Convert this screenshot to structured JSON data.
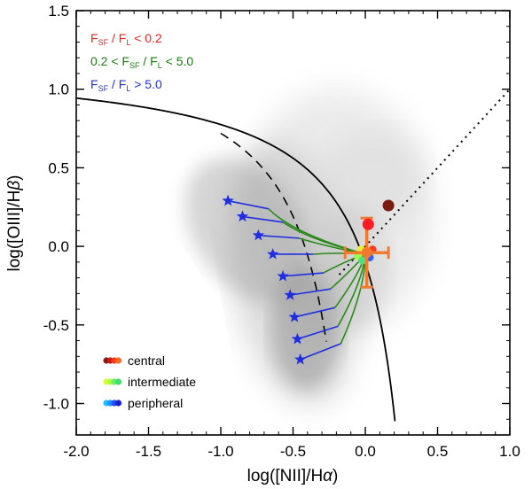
{
  "chart_data": {
    "type": "scatter",
    "title": "",
    "xlabel_main": "log([NII]/H",
    "xlabel_greek": "α",
    "ylabel_main": "log([OIII]/H",
    "ylabel_greek": "β",
    "xlim": [
      -2.0,
      1.0
    ],
    "ylim": [
      -1.2,
      1.5
    ],
    "x_ticks": [
      -2.0,
      -1.5,
      -1.0,
      -0.5,
      0.0,
      0.5,
      1.0
    ],
    "x_tick_labels": [
      "-2.0",
      "-1.5",
      "-1.0",
      "-0.5",
      "0.0",
      "0.5",
      "1.0"
    ],
    "y_ticks": [
      -1.0,
      -0.5,
      0.0,
      0.5,
      1.0,
      1.5
    ],
    "y_tick_labels": [
      "-1.0",
      "-0.5",
      "0.0",
      "0.5",
      "1.0",
      "1.5"
    ],
    "ratio_legend": [
      {
        "prefix": "",
        "sub1": "SF",
        "sub2": "L",
        "suffix": " < 0.2",
        "color": "#e8231c"
      },
      {
        "prefix": "0.2 < ",
        "sub1": "SF",
        "sub2": "L",
        "suffix": " < 5.0",
        "color": "#1a7a12"
      },
      {
        "prefix": "",
        "sub1": "SF",
        "sub2": "L",
        "suffix": " > 5.0",
        "color": "#1f2fe0"
      }
    ],
    "symbol_legend": [
      {
        "label": "central",
        "colors": [
          "#8b1a0f",
          "#c21a10",
          "#ff3a1a",
          "#ff6a20"
        ]
      },
      {
        "label": "intermediate",
        "colors": [
          "#d8ff30",
          "#a8ff40",
          "#70f060",
          "#40e070"
        ]
      },
      {
        "label": "peripheral",
        "colors": [
          "#20c0ff",
          "#2090ff",
          "#2050ff",
          "#1a20d0"
        ]
      }
    ],
    "fixed_point": {
      "x": 0.0,
      "y": -0.05
    },
    "peripheral_stars": [
      {
        "x": -0.95,
        "y": 0.29
      },
      {
        "x": -0.85,
        "y": 0.19
      },
      {
        "x": -0.74,
        "y": 0.07
      },
      {
        "x": -0.64,
        "y": -0.05
      },
      {
        "x": -0.57,
        "y": -0.19
      },
      {
        "x": -0.52,
        "y": -0.31
      },
      {
        "x": -0.49,
        "y": -0.45
      },
      {
        "x": -0.47,
        "y": -0.59
      },
      {
        "x": -0.45,
        "y": -0.72
      }
    ],
    "central_points": [
      {
        "x": 0.16,
        "y": 0.26,
        "color": "#7a1a10"
      },
      {
        "x": 0.02,
        "y": 0.14,
        "color": "#ff1a24"
      }
    ],
    "central_cross": {
      "x": 0.01,
      "y": -0.04,
      "xerr": 0.15,
      "yerr": 0.22,
      "color": "#f07a30"
    },
    "cluster_points": [
      {
        "x": -0.03,
        "y": -0.02,
        "color": "#e8f030"
      },
      {
        "x": -0.05,
        "y": -0.06,
        "color": "#9cff48"
      },
      {
        "x": 0.03,
        "y": -0.07,
        "color": "#2a60ff"
      },
      {
        "x": 0.05,
        "y": -0.02,
        "color": "#ff3a20"
      },
      {
        "x": -0.02,
        "y": -0.09,
        "color": "#50e07a"
      }
    ],
    "kewley_line": "log([OIII]/Hb) = 0.61/(x - 0.47) + 1.19",
    "kauffmann_line": "log([OIII]/Hb) = 0.61/(x - 0.05) + 1.30",
    "division_line": "y = x"
  }
}
